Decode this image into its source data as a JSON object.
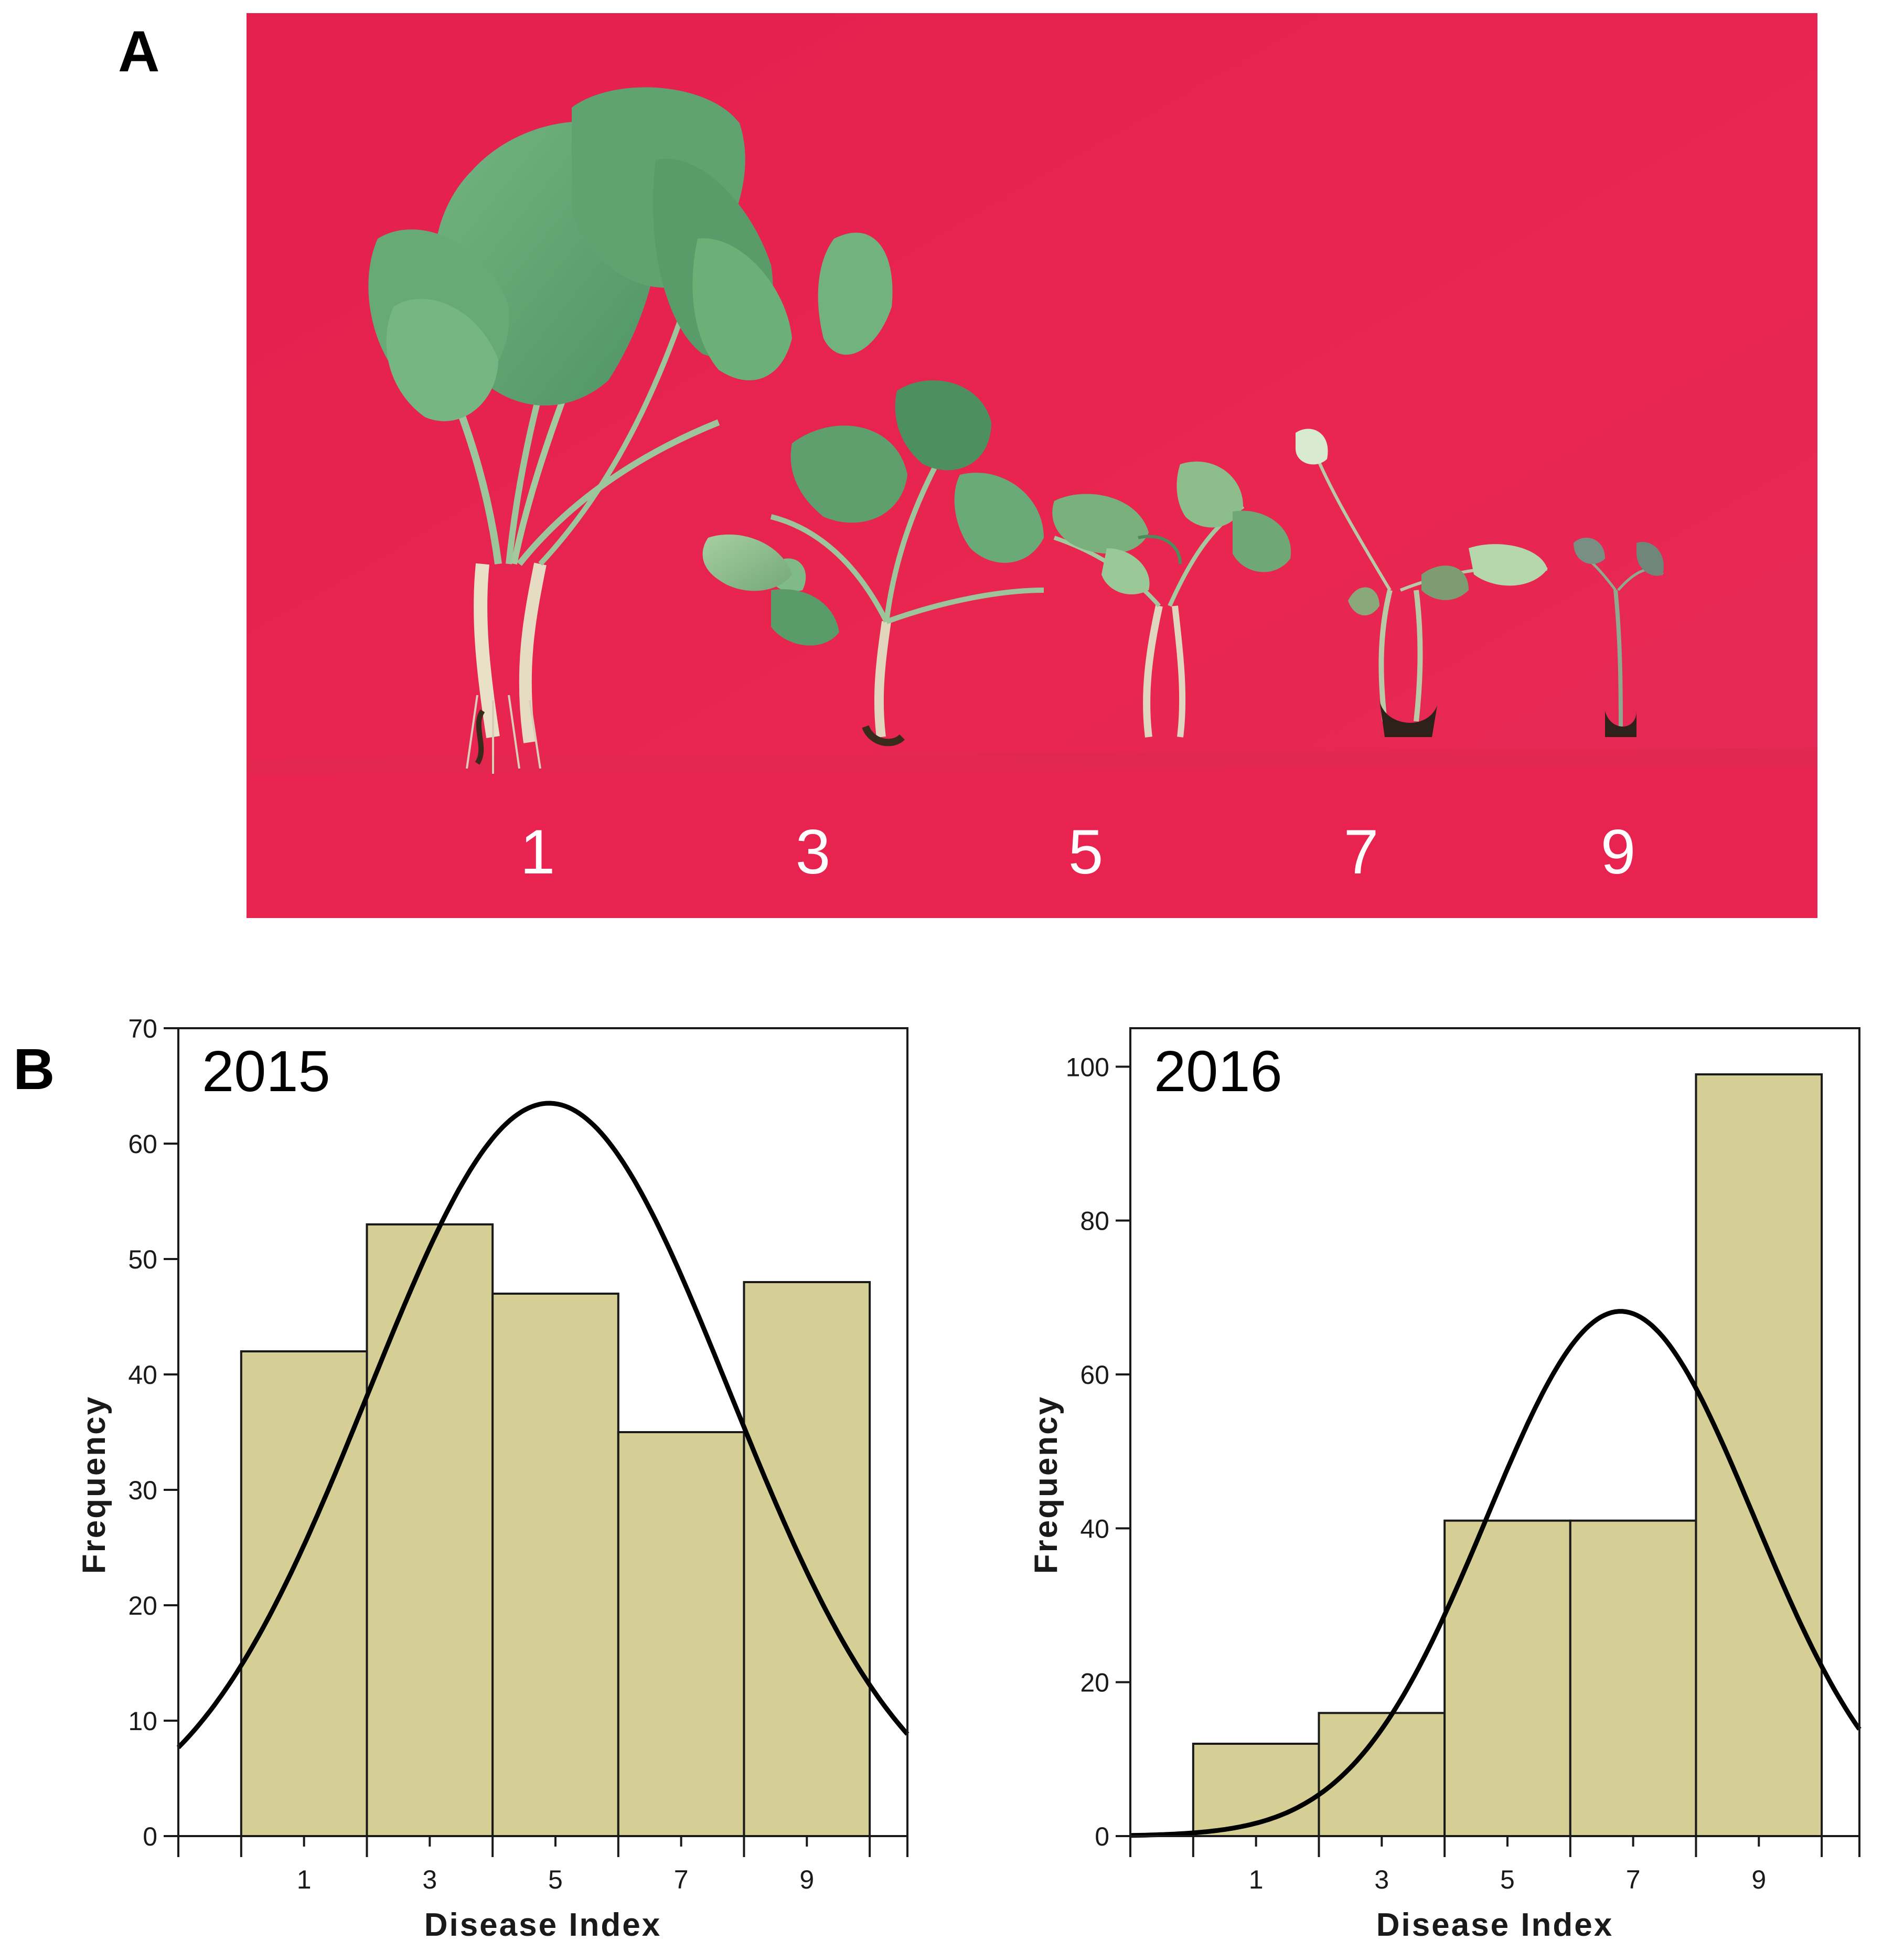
{
  "panels": {
    "a_label": "A",
    "b_label": "B"
  },
  "photo": {
    "background_color": "#e52452",
    "strip_color": "#e8234f",
    "score_labels": [
      "1",
      "3",
      "5",
      "7",
      "9"
    ]
  },
  "chart_data": [
    {
      "type": "bar",
      "annotation": "2015",
      "xlabel": "Disease Index",
      "ylabel": "Frequency",
      "x_ticks": [
        1,
        3,
        5,
        7,
        9
      ],
      "xlim": [
        -1,
        10.6
      ],
      "ylim": [
        0,
        70
      ],
      "y_ticks": [
        0,
        10,
        20,
        30,
        40,
        50,
        60,
        70
      ],
      "bins": [
        {
          "from": 0,
          "to": 2,
          "value": 42
        },
        {
          "from": 2,
          "to": 4,
          "value": 53
        },
        {
          "from": 4,
          "to": 6,
          "value": 47
        },
        {
          "from": 6,
          "to": 8,
          "value": 35
        },
        {
          "from": 8,
          "to": 10,
          "value": 48
        }
      ],
      "normal_curve": {
        "mean": 4.9,
        "sd": 2.87,
        "peak": 63.5
      },
      "bar_color": "#d5cf96",
      "grid": false
    },
    {
      "type": "bar",
      "annotation": "2016",
      "xlabel": "Disease Index",
      "ylabel": "Frequency",
      "x_ticks": [
        1,
        3,
        5,
        7,
        9
      ],
      "xlim": [
        -1,
        10.6
      ],
      "ylim": [
        0,
        105
      ],
      "y_ticks": [
        0,
        20,
        40,
        60,
        80,
        100
      ],
      "bins": [
        {
          "from": 0,
          "to": 2,
          "value": 12
        },
        {
          "from": 2,
          "to": 4,
          "value": 16
        },
        {
          "from": 4,
          "to": 6,
          "value": 41
        },
        {
          "from": 6,
          "to": 8,
          "value": 41
        },
        {
          "from": 8,
          "to": 10,
          "value": 99
        }
      ],
      "normal_curve": {
        "mean": 6.8,
        "sd": 2.13,
        "peak": 68.2
      },
      "bar_color": "#d5cf96",
      "grid": false
    }
  ]
}
